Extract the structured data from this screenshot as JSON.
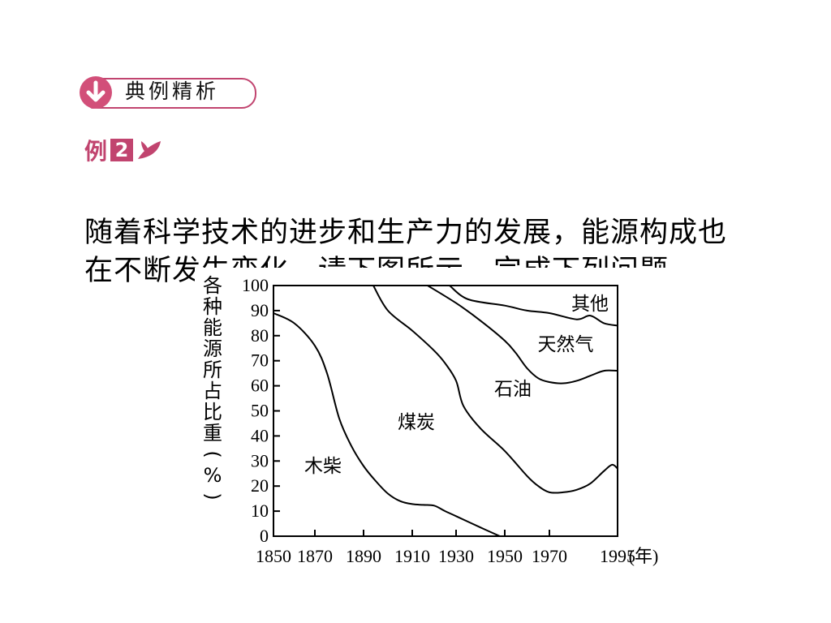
{
  "header": {
    "badge_label": "典例精析",
    "badge_icon": "down-arrow-icon",
    "example_label": "例",
    "example_number": "2",
    "example_icon": "leaf-icon",
    "accent_color": "#c1446f"
  },
  "problem": {
    "text": "随着科学技术的进步和生产力的发展，能源构成也在不断发生变化。请下图所示，完成下列问题。"
  },
  "chart_data": {
    "type": "area",
    "ylabel": "各种能源所占比重(%)",
    "xlabel": "(年)",
    "x_ticks": [
      "1850",
      "1870",
      "1890",
      "1910",
      "1930",
      "1950",
      "1970",
      "1995"
    ],
    "y_ticks": [
      "0",
      "10",
      "20",
      "30",
      "40",
      "50",
      "60",
      "70",
      "80",
      "90",
      "100"
    ],
    "ylim": [
      0,
      100
    ],
    "boundaries": [
      {
        "name": "木柴",
        "points": [
          [
            1850,
            89
          ],
          [
            1860,
            85
          ],
          [
            1870,
            76
          ],
          [
            1875,
            65
          ],
          [
            1880,
            47
          ],
          [
            1885,
            36
          ],
          [
            1890,
            28
          ],
          [
            1895,
            22
          ],
          [
            1900,
            17
          ],
          [
            1905,
            14
          ],
          [
            1910,
            12.8
          ],
          [
            1915,
            12.5
          ],
          [
            1920,
            12.2
          ],
          [
            1925,
            10
          ],
          [
            1930,
            8
          ],
          [
            1940,
            3.5
          ],
          [
            1948,
            0
          ]
        ]
      },
      {
        "name": "煤炭",
        "points": [
          [
            1894,
            100
          ],
          [
            1900,
            90
          ],
          [
            1910,
            82
          ],
          [
            1920,
            74
          ],
          [
            1925,
            69
          ],
          [
            1930,
            62
          ],
          [
            1933,
            52
          ],
          [
            1940,
            43
          ],
          [
            1950,
            34
          ],
          [
            1960,
            24
          ],
          [
            1965,
            20
          ],
          [
            1970,
            17.5
          ],
          [
            1975,
            17.5
          ],
          [
            1980,
            18.5
          ],
          [
            1985,
            21
          ],
          [
            1990,
            26
          ],
          [
            1993,
            28.5
          ],
          [
            1995,
            27
          ]
        ]
      },
      {
        "name": "石油",
        "points": [
          [
            1917,
            100
          ],
          [
            1930,
            93
          ],
          [
            1940,
            86
          ],
          [
            1950,
            78
          ],
          [
            1955,
            73
          ],
          [
            1960,
            67
          ],
          [
            1965,
            63
          ],
          [
            1970,
            61.5
          ],
          [
            1975,
            61
          ],
          [
            1980,
            62
          ],
          [
            1985,
            64
          ],
          [
            1990,
            66
          ],
          [
            1995,
            66
          ]
        ]
      },
      {
        "name": "天然气",
        "points": [
          [
            1927,
            100
          ],
          [
            1935,
            94.5
          ],
          [
            1950,
            92
          ],
          [
            1960,
            90
          ],
          [
            1970,
            89
          ],
          [
            1980,
            86.5
          ],
          [
            1985,
            88
          ],
          [
            1990,
            85
          ],
          [
            1995,
            84
          ]
        ]
      }
    ],
    "region_labels": [
      "木柴",
      "煤炭",
      "石油",
      "天然气",
      "其他"
    ]
  }
}
